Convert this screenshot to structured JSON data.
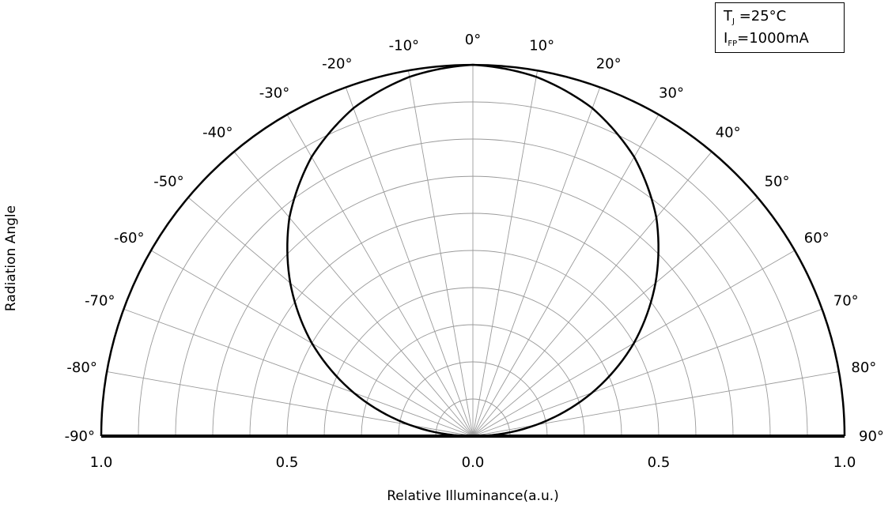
{
  "chart_data": {
    "type": "polar",
    "ylabel": "Radiation Angle",
    "xlabel": "Relative Illuminance(a.u.)",
    "angle_range": [
      -90,
      90
    ],
    "angle_step": 10,
    "radius_range": [
      0,
      1.0
    ],
    "radius_grid_step": 0.1,
    "angle_tick_labels": [
      "-90°",
      "-80°",
      "-70°",
      "-60°",
      "-50°",
      "-40°",
      "-30°",
      "-20°",
      "-10°",
      "0°",
      "10°",
      "20°",
      "30°",
      "40°",
      "50°",
      "60°",
      "70°",
      "80°",
      "90°"
    ],
    "radius_tick_labels": [
      "1.0",
      "0.5",
      "0.0",
      "0.5",
      "1.0"
    ],
    "radius_tick_values": [
      -1.0,
      -0.5,
      0.0,
      0.5,
      1.0
    ],
    "grid": true,
    "series": [
      {
        "angles_deg": [
          -90,
          -80,
          -70,
          -60,
          -50,
          -40,
          -30,
          -20,
          -10,
          0,
          10,
          20,
          30,
          40,
          50,
          60,
          70,
          80,
          90
        ],
        "values": [
          0.0,
          0.17,
          0.34,
          0.5,
          0.64,
          0.77,
          0.87,
          0.94,
          0.98,
          1.0,
          0.98,
          0.94,
          0.87,
          0.77,
          0.64,
          0.5,
          0.34,
          0.17,
          0.0
        ]
      }
    ],
    "conditions": {
      "tj_symbol": "T",
      "tj_sub": "J",
      "tj_value": "=25°C",
      "ifp_symbol": "I",
      "ifp_sub": "FP",
      "ifp_value": "=1000mA"
    },
    "colors": {
      "curve": "#000000",
      "grid": "#9a9a9a",
      "frame": "#000000"
    }
  }
}
